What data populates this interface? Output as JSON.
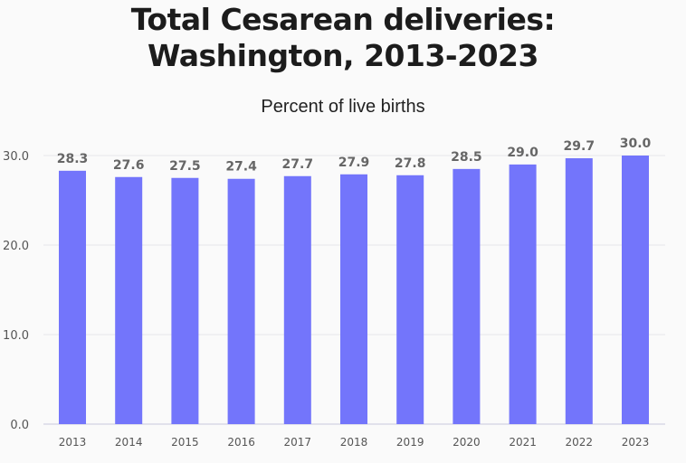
{
  "chart_data": {
    "type": "bar",
    "title_lines": [
      "Total Cesarean deliveries:",
      "Washington, 2013-2023"
    ],
    "subtitle": "Percent of live births",
    "categories": [
      "2013",
      "2014",
      "2015",
      "2016",
      "2017",
      "2018",
      "2019",
      "2020",
      "2021",
      "2022",
      "2023"
    ],
    "values": [
      28.3,
      27.6,
      27.5,
      27.4,
      27.7,
      27.9,
      27.8,
      28.5,
      29.0,
      29.7,
      30.0
    ],
    "data_labels": [
      "28.3",
      "27.6",
      "27.5",
      "27.4",
      "27.7",
      "27.9",
      "27.8",
      "28.5",
      "29.0",
      "29.7",
      "30.0"
    ],
    "yticks": [
      "0.0",
      "10.0",
      "20.0",
      "30.0"
    ],
    "ylim": [
      0,
      30
    ],
    "grid": true,
    "bar_color": "#7375fb"
  }
}
